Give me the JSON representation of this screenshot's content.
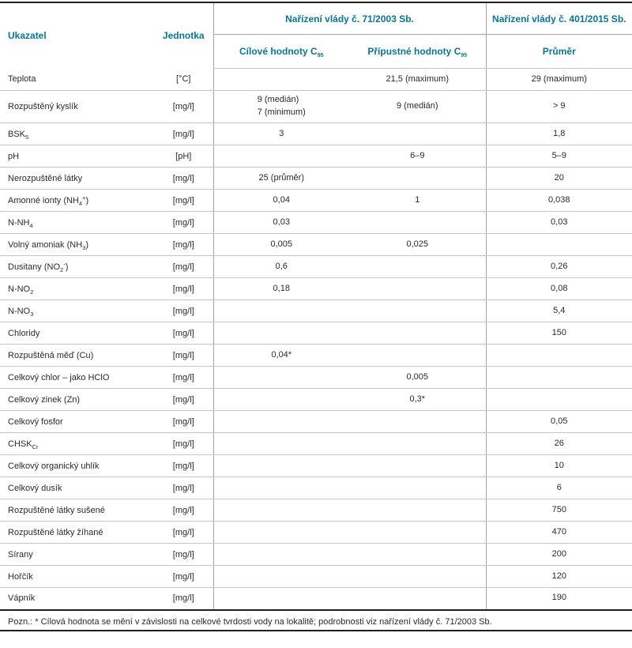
{
  "colors": {
    "accent_teal": "#0d7390",
    "text": "#2b2a29",
    "grid_light": "#c6c6c6",
    "grid_medium": "#a6a6a6",
    "grid_dark": "#1f1f1f"
  },
  "table": {
    "headers": {
      "indicator": "Ukazatel",
      "unit": "Jednotka",
      "group_2003": "Nařízení vlády č. 71/2003 Sb.",
      "group_2015": "Nařízení vlády č. 401/2015 Sb.",
      "target_pre": "Cílové hodnoty C",
      "allowed_pre": "Přípustné hodnoty C",
      "c95_sub": "95",
      "average": "Průměr"
    },
    "rows": [
      {
        "label": {
          "pre": "Teplota"
        },
        "unit": "[°C]",
        "target": "",
        "allowed": "21,5 (maximum)",
        "average": "29 (maximum)"
      },
      {
        "label": {
          "pre": "Rozpuštěný kyslík"
        },
        "unit": "[mg/l]",
        "target": "9 (medián)\n7 (minimum)",
        "allowed": "9 (medián)",
        "average": "> 9"
      },
      {
        "label": {
          "pre": "BSK",
          "sub": "5"
        },
        "unit": "[mg/l]",
        "target": "3",
        "allowed": "",
        "average": "1,8"
      },
      {
        "label": {
          "pre": "pH"
        },
        "unit": "[pH]",
        "target": "",
        "allowed": "6–9",
        "average": "5–9"
      },
      {
        "label": {
          "pre": "Nerozpuštěné látky"
        },
        "unit": "[mg/l]",
        "target": "25 (průměr)",
        "allowed": "",
        "average": "20"
      },
      {
        "label": {
          "pre": "Amonné ionty (NH",
          "sub": "4",
          "sup": "+",
          "post": ")"
        },
        "unit": "[mg/l]",
        "target": "0,04",
        "allowed": "1",
        "average": "0,038"
      },
      {
        "label": {
          "pre": "N-NH",
          "sub": "4"
        },
        "unit": "[mg/l]",
        "target": "0,03",
        "allowed": "",
        "average": "0,03"
      },
      {
        "label": {
          "pre": "Volný amoniak (NH",
          "sub": "3",
          "post": ")"
        },
        "unit": "[mg/l]",
        "target": "0,005",
        "allowed": "0,025",
        "average": ""
      },
      {
        "label": {
          "pre": "Dusitany (NO",
          "sub": "2",
          "sup": "-",
          "post": ")"
        },
        "unit": "[mg/l]",
        "target": "0,6",
        "allowed": "",
        "average": "0,26"
      },
      {
        "label": {
          "pre": "N-NO",
          "sub": "2"
        },
        "unit": "[mg/l]",
        "target": "0,18",
        "allowed": "",
        "average": "0,08"
      },
      {
        "label": {
          "pre": "N-NO",
          "sub": "3"
        },
        "unit": "[mg/l]",
        "target": "",
        "allowed": "",
        "average": "5,4"
      },
      {
        "label": {
          "pre": "Chloridy"
        },
        "unit": "[mg/l]",
        "target": "",
        "allowed": "",
        "average": "150"
      },
      {
        "label": {
          "pre": "Rozpuštěná měď (Cu)"
        },
        "unit": "[mg/l]",
        "target": "0,04*",
        "allowed": "",
        "average": ""
      },
      {
        "label": {
          "pre": "Celkový chlor – jako HClO"
        },
        "unit": "[mg/l]",
        "target": "",
        "allowed": "0,005",
        "average": ""
      },
      {
        "label": {
          "pre": "Celkový zinek (Zn)"
        },
        "unit": "[mg/l]",
        "target": "",
        "allowed": "0,3*",
        "average": ""
      },
      {
        "label": {
          "pre": "Celkový fosfor"
        },
        "unit": "[mg/l]",
        "target": "",
        "allowed": "",
        "average": "0,05"
      },
      {
        "label": {
          "pre": "CHSK",
          "sub": "Cr"
        },
        "unit": "[mg/l]",
        "target": "",
        "allowed": "",
        "average": "26"
      },
      {
        "label": {
          "pre": "Celkový organický uhlík"
        },
        "unit": "[mg/l]",
        "target": "",
        "allowed": "",
        "average": "10"
      },
      {
        "label": {
          "pre": "Celkový dusík"
        },
        "unit": "[mg/l]",
        "target": "",
        "allowed": "",
        "average": "6"
      },
      {
        "label": {
          "pre": "Rozpuštěné látky sušené"
        },
        "unit": "[mg/l]",
        "target": "",
        "allowed": "",
        "average": "750"
      },
      {
        "label": {
          "pre": "Rozpuštěné látky žíhané"
        },
        "unit": "[mg/l]",
        "target": "",
        "allowed": "",
        "average": "470"
      },
      {
        "label": {
          "pre": "Sírany"
        },
        "unit": "[mg/l]",
        "target": "",
        "allowed": "",
        "average": "200"
      },
      {
        "label": {
          "pre": "Hořčík"
        },
        "unit": "[mg/l]",
        "target": "",
        "allowed": "",
        "average": "120"
      },
      {
        "label": {
          "pre": "Vápník"
        },
        "unit": "[mg/l]",
        "target": "",
        "allowed": "",
        "average": "190"
      }
    ]
  },
  "footnote": "Pozn.: * Cílová hodnota se mění v závislosti na celkové tvrdosti vody na lokalitě; podrobnosti viz nařízení vlády č. 71/2003 Sb."
}
